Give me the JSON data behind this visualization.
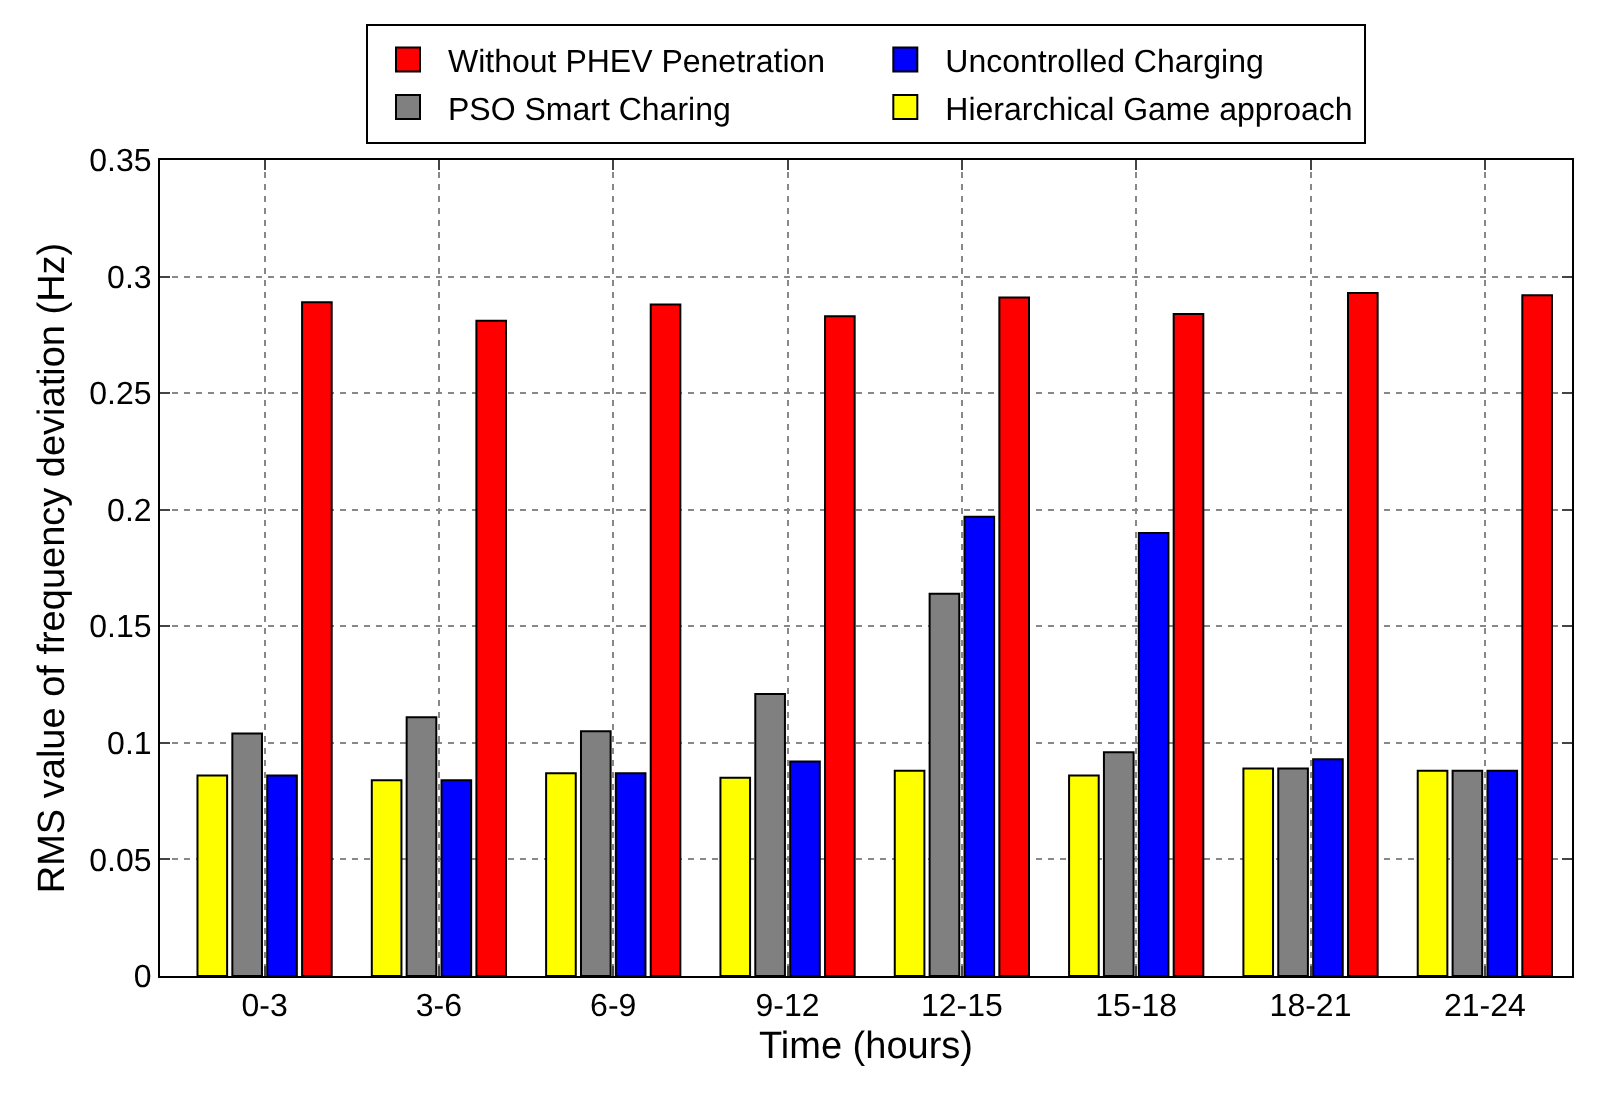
{
  "chart_data": {
    "type": "bar",
    "xlabel": "Time (hours)",
    "ylabel": "RMS value of frequency deviation (Hz)",
    "categories": [
      "0-3",
      "3-6",
      "6-9",
      "9-12",
      "12-15",
      "15-18",
      "18-21",
      "21-24"
    ],
    "series": [
      {
        "name": "Hierarchical Game approach",
        "color": "#ffff00",
        "values": [
          0.086,
          0.084,
          0.087,
          0.085,
          0.088,
          0.086,
          0.089,
          0.088
        ]
      },
      {
        "name": "PSO Smart Charing",
        "color": "#808080",
        "values": [
          0.104,
          0.111,
          0.105,
          0.121,
          0.164,
          0.096,
          0.089,
          0.088
        ]
      },
      {
        "name": "Uncontrolled Charging",
        "color": "#0000ff",
        "values": [
          0.086,
          0.084,
          0.087,
          0.092,
          0.197,
          0.19,
          0.093,
          0.088
        ]
      },
      {
        "name": "Without PHEV Penetration",
        "color": "#ff0000",
        "values": [
          0.289,
          0.281,
          0.288,
          0.283,
          0.291,
          0.284,
          0.293,
          0.292
        ]
      }
    ],
    "ylim": [
      0,
      0.35
    ],
    "yticks": [
      0,
      0.05,
      0.1,
      0.15,
      0.2,
      0.25,
      0.3,
      0.35
    ],
    "grid": true,
    "legend": "top"
  }
}
